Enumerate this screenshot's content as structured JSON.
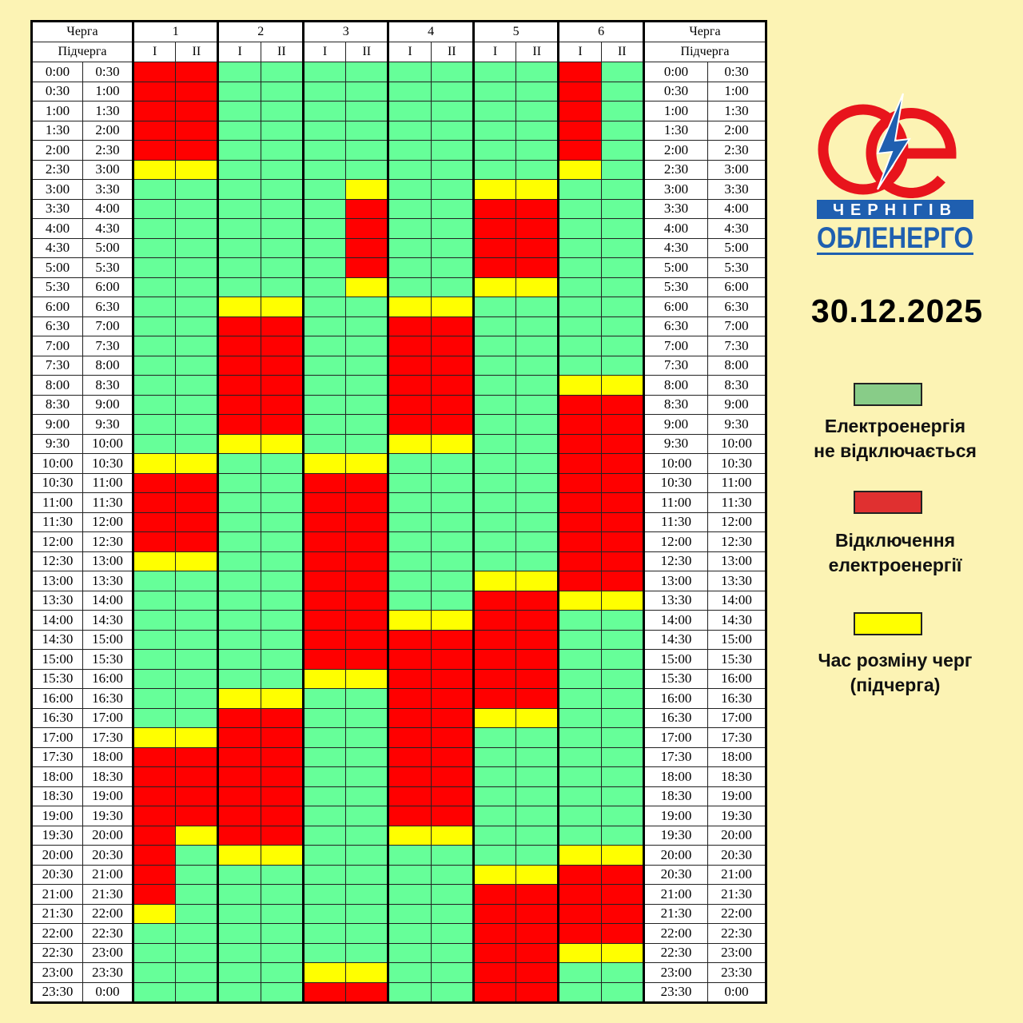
{
  "header": {
    "queue_label": "Черга",
    "subqueue_label": "Підчерга",
    "queues": [
      "1",
      "2",
      "3",
      "4",
      "5",
      "6"
    ],
    "subqueues": [
      "I",
      "II"
    ]
  },
  "times": [
    [
      "0:00",
      "0:30"
    ],
    [
      "0:30",
      "1:00"
    ],
    [
      "1:00",
      "1:30"
    ],
    [
      "1:30",
      "2:00"
    ],
    [
      "2:00",
      "2:30"
    ],
    [
      "2:30",
      "3:00"
    ],
    [
      "3:00",
      "3:30"
    ],
    [
      "3:30",
      "4:00"
    ],
    [
      "4:00",
      "4:30"
    ],
    [
      "4:30",
      "5:00"
    ],
    [
      "5:00",
      "5:30"
    ],
    [
      "5:30",
      "6:00"
    ],
    [
      "6:00",
      "6:30"
    ],
    [
      "6:30",
      "7:00"
    ],
    [
      "7:00",
      "7:30"
    ],
    [
      "7:30",
      "8:00"
    ],
    [
      "8:00",
      "8:30"
    ],
    [
      "8:30",
      "9:00"
    ],
    [
      "9:00",
      "9:30"
    ],
    [
      "9:30",
      "10:00"
    ],
    [
      "10:00",
      "10:30"
    ],
    [
      "10:30",
      "11:00"
    ],
    [
      "11:00",
      "11:30"
    ],
    [
      "11:30",
      "12:00"
    ],
    [
      "12:00",
      "12:30"
    ],
    [
      "12:30",
      "13:00"
    ],
    [
      "13:00",
      "13:30"
    ],
    [
      "13:30",
      "14:00"
    ],
    [
      "14:00",
      "14:30"
    ],
    [
      "14:30",
      "15:00"
    ],
    [
      "15:00",
      "15:30"
    ],
    [
      "15:30",
      "16:00"
    ],
    [
      "16:00",
      "16:30"
    ],
    [
      "16:30",
      "17:00"
    ],
    [
      "17:00",
      "17:30"
    ],
    [
      "17:30",
      "18:00"
    ],
    [
      "18:00",
      "18:30"
    ],
    [
      "18:30",
      "19:00"
    ],
    [
      "19:00",
      "19:30"
    ],
    [
      "19:30",
      "20:00"
    ],
    [
      "20:00",
      "20:30"
    ],
    [
      "20:30",
      "21:00"
    ],
    [
      "21:00",
      "21:30"
    ],
    [
      "21:30",
      "22:00"
    ],
    [
      "22:00",
      "22:30"
    ],
    [
      "22:30",
      "23:00"
    ],
    [
      "23:00",
      "23:30"
    ],
    [
      "23:30",
      "0:00"
    ]
  ],
  "status_legend_codes": {
    "G": "on",
    "R": "off",
    "Y": "changeover"
  },
  "schedule": {
    "1-I": "RRRRRYGGGGGGGGGGGGGGYRRRRYGGGGGGGGYRRRRRRRRYGGGG",
    "1-II": "RRRRRYGGGGGGGGGGGGGGYRRRRYGGGGGGGGYRRRRYGGGGGGGG",
    "2-I": "GGGGGGGGGGGGYRRRRRRYGGGGGGGGGGGGYRRRRRRRYGGGGGGG",
    "2-II": "GGGGGGGGGGGGYRRRRRRYGGGGGGGGGGGGYRRRRRRRYGGGGGGG",
    "3-I": "GGGGGGGGGGGGGGGGGGGGYRRRRRRRRRRYGGGGGGGGGGGGGGYR",
    "3-II": "GGGGGGYRRRRYGGGGGGGGYRRRRRRRRRRYGGGGGGGGGGGGGGYR",
    "4-I": "GGGGGGGGGGGGYRRRRRRYGGGGGGGGYRRRRRRRRRRYGGGGGGGG",
    "4-II": "GGGGGGGGGGGGYRRRRRRYGGGGGGGGYRRRRRRRRRRYGGGGGGGG",
    "5-I": "GGGGGGYRRRRYGGGGGGGGGGGGGGYRRRRRRYGGGGGGGYRRRRRR",
    "5-II": "GGGGGGYRRRRYGGGGGGGGGGGGGGYRRRRRRYGGGGGGGYRRRRRR",
    "6-I": "RRRRRYGGGGGGGGGGYRRRRRRRRRRYGGGGGGGGGGGGYRRRRYGG",
    "6-II": "GGGGGGGGGGGGGGGGYRRRRRRRRRRYGGGGGGGGGGGGYRRRRYGG"
  },
  "logo": {
    "line1": "ЧЕРНІГІВ",
    "line2": "ОБЛЕНЕРГО"
  },
  "date": "30.12.2025",
  "legend": [
    {
      "line1": "Електроенергія",
      "line2": "не відключається",
      "color": "#88cc88"
    },
    {
      "line1": "Відключення",
      "line2": "електроенергії",
      "color": "#e03030"
    },
    {
      "line1": "Час розміну черг",
      "line2": "(підчерга)",
      "color": "#ffff00"
    }
  ],
  "colors": {
    "G": "#66ff99",
    "R": "#ff0000",
    "Y": "#ffff00",
    "background": "#fcf3b4"
  }
}
